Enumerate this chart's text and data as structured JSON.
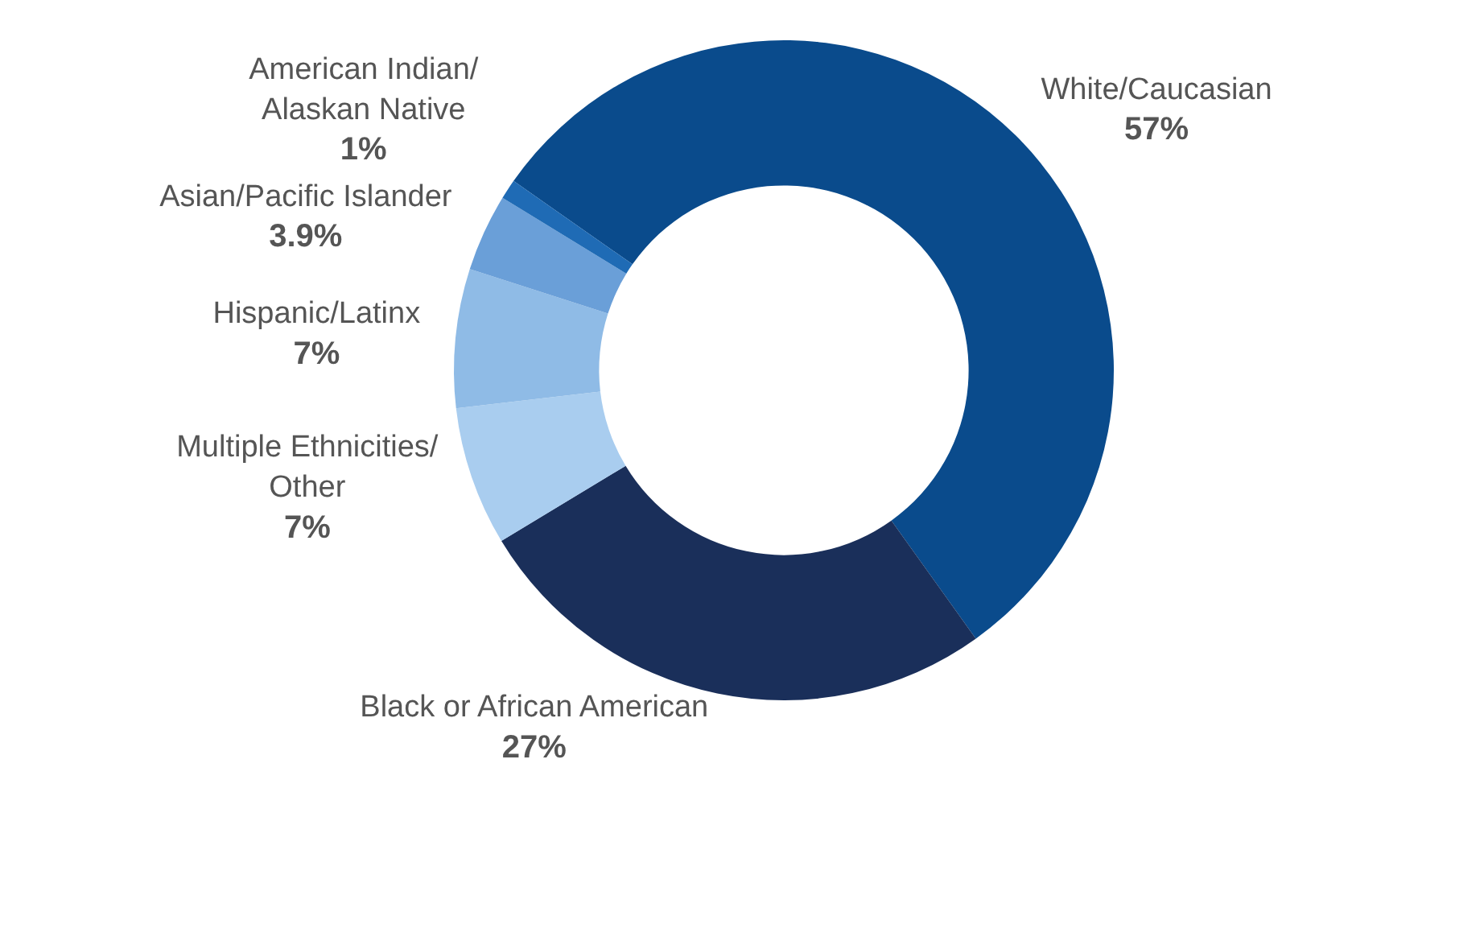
{
  "chart_data": {
    "type": "donut",
    "categories": [
      "White/Caucasian",
      "Black or African American",
      "Multiple Ethnicities/ Other",
      "Hispanic/Latinx",
      "Asian/Pacific Islander",
      "American Indian/ Alaskan Native"
    ],
    "values": [
      57,
      27,
      7,
      7,
      3.9,
      1
    ],
    "value_labels": [
      "57%",
      "27%",
      "7%",
      "7%",
      "3.9%",
      "1%"
    ],
    "colors": [
      "#0a4b8c",
      "#1a2f5a",
      "#a9cdef",
      "#8fbbe6",
      "#6a9fd8",
      "#1f6bb5"
    ],
    "legend": false
  }
}
